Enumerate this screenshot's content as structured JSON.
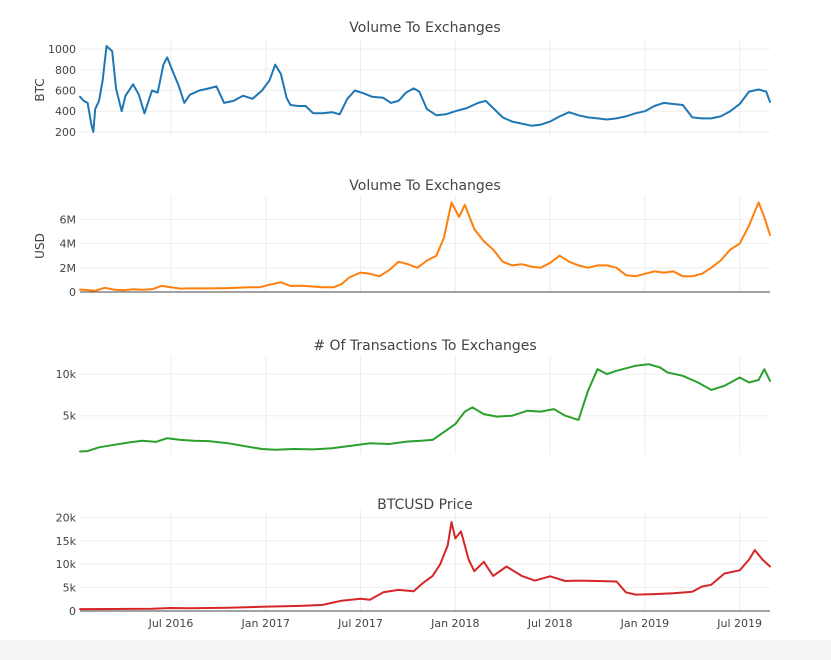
{
  "chart_data": [
    {
      "type": "line",
      "title": "Volume To Exchanges",
      "ylabel": "BTC",
      "color": "#1f77b4",
      "ylim": [
        170,
        1040
      ],
      "yticks": [
        200,
        400,
        600,
        800,
        1000
      ],
      "ytick_labels": [
        "200",
        "400",
        "600",
        "800",
        "1000"
      ],
      "show_zero_line": false,
      "points": [
        [
          2016.02,
          540
        ],
        [
          2016.04,
          500
        ],
        [
          2016.06,
          480
        ],
        [
          2016.08,
          270
        ],
        [
          2016.09,
          200
        ],
        [
          2016.1,
          420
        ],
        [
          2016.12,
          500
        ],
        [
          2016.14,
          700
        ],
        [
          2016.16,
          1030
        ],
        [
          2016.19,
          980
        ],
        [
          2016.21,
          620
        ],
        [
          2016.24,
          400
        ],
        [
          2016.26,
          550
        ],
        [
          2016.3,
          660
        ],
        [
          2016.33,
          560
        ],
        [
          2016.36,
          380
        ],
        [
          2016.4,
          600
        ],
        [
          2016.43,
          580
        ],
        [
          2016.46,
          850
        ],
        [
          2016.48,
          920
        ],
        [
          2016.51,
          780
        ],
        [
          2016.54,
          650
        ],
        [
          2016.57,
          480
        ],
        [
          2016.6,
          560
        ],
        [
          2016.65,
          600
        ],
        [
          2016.7,
          620
        ],
        [
          2016.74,
          640
        ],
        [
          2016.78,
          480
        ],
        [
          2016.83,
          500
        ],
        [
          2016.88,
          550
        ],
        [
          2016.93,
          520
        ],
        [
          2016.98,
          600
        ],
        [
          2017.02,
          700
        ],
        [
          2017.05,
          850
        ],
        [
          2017.08,
          760
        ],
        [
          2017.11,
          530
        ],
        [
          2017.13,
          460
        ],
        [
          2017.17,
          450
        ],
        [
          2017.21,
          450
        ],
        [
          2017.25,
          380
        ],
        [
          2017.3,
          380
        ],
        [
          2017.35,
          390
        ],
        [
          2017.39,
          370
        ],
        [
          2017.43,
          520
        ],
        [
          2017.47,
          600
        ],
        [
          2017.52,
          570
        ],
        [
          2017.56,
          540
        ],
        [
          2017.62,
          530
        ],
        [
          2017.66,
          480
        ],
        [
          2017.7,
          500
        ],
        [
          2017.74,
          580
        ],
        [
          2017.78,
          620
        ],
        [
          2017.81,
          590
        ],
        [
          2017.85,
          420
        ],
        [
          2017.9,
          360
        ],
        [
          2017.95,
          370
        ],
        [
          2018.0,
          400
        ],
        [
          2018.06,
          430
        ],
        [
          2018.12,
          480
        ],
        [
          2018.16,
          500
        ],
        [
          2018.2,
          430
        ],
        [
          2018.25,
          340
        ],
        [
          2018.3,
          300
        ],
        [
          2018.35,
          280
        ],
        [
          2018.4,
          260
        ],
        [
          2018.45,
          270
        ],
        [
          2018.5,
          300
        ],
        [
          2018.55,
          350
        ],
        [
          2018.6,
          390
        ],
        [
          2018.65,
          360
        ],
        [
          2018.7,
          340
        ],
        [
          2018.75,
          330
        ],
        [
          2018.8,
          320
        ],
        [
          2018.85,
          330
        ],
        [
          2018.9,
          350
        ],
        [
          2018.95,
          380
        ],
        [
          2019.0,
          400
        ],
        [
          2019.05,
          450
        ],
        [
          2019.1,
          480
        ],
        [
          2019.15,
          470
        ],
        [
          2019.2,
          460
        ],
        [
          2019.25,
          340
        ],
        [
          2019.3,
          330
        ],
        [
          2019.35,
          330
        ],
        [
          2019.4,
          350
        ],
        [
          2019.45,
          400
        ],
        [
          2019.5,
          470
        ],
        [
          2019.55,
          590
        ],
        [
          2019.6,
          610
        ],
        [
          2019.64,
          590
        ],
        [
          2019.66,
          490
        ]
      ]
    },
    {
      "type": "line",
      "title": "Volume To Exchanges",
      "ylabel": "USD",
      "color": "#ff7f0e",
      "ylim": [
        0,
        7600000
      ],
      "yticks": [
        0,
        2000000,
        4000000,
        6000000
      ],
      "ytick_labels": [
        "0",
        "2M",
        "4M",
        "6M"
      ],
      "show_zero_line": true,
      "points": [
        [
          2016.02,
          200000
        ],
        [
          2016.05,
          170000
        ],
        [
          2016.1,
          100000
        ],
        [
          2016.15,
          350000
        ],
        [
          2016.2,
          200000
        ],
        [
          2016.25,
          150000
        ],
        [
          2016.3,
          220000
        ],
        [
          2016.35,
          180000
        ],
        [
          2016.4,
          220000
        ],
        [
          2016.45,
          500000
        ],
        [
          2016.5,
          400000
        ],
        [
          2016.55,
          280000
        ],
        [
          2016.6,
          300000
        ],
        [
          2016.7,
          300000
        ],
        [
          2016.8,
          320000
        ],
        [
          2016.9,
          380000
        ],
        [
          2016.97,
          400000
        ],
        [
          2017.02,
          600000
        ],
        [
          2017.08,
          800000
        ],
        [
          2017.13,
          500000
        ],
        [
          2017.2,
          500000
        ],
        [
          2017.3,
          400000
        ],
        [
          2017.36,
          400000
        ],
        [
          2017.4,
          650000
        ],
        [
          2017.44,
          1200000
        ],
        [
          2017.5,
          1600000
        ],
        [
          2017.55,
          1500000
        ],
        [
          2017.6,
          1300000
        ],
        [
          2017.65,
          1800000
        ],
        [
          2017.7,
          2500000
        ],
        [
          2017.75,
          2300000
        ],
        [
          2017.8,
          2000000
        ],
        [
          2017.85,
          2600000
        ],
        [
          2017.9,
          3000000
        ],
        [
          2017.94,
          4500000
        ],
        [
          2017.98,
          7400000
        ],
        [
          2018.02,
          6200000
        ],
        [
          2018.05,
          7200000
        ],
        [
          2018.1,
          5200000
        ],
        [
          2018.15,
          4200000
        ],
        [
          2018.2,
          3500000
        ],
        [
          2018.25,
          2500000
        ],
        [
          2018.3,
          2200000
        ],
        [
          2018.35,
          2300000
        ],
        [
          2018.4,
          2100000
        ],
        [
          2018.45,
          2000000
        ],
        [
          2018.5,
          2400000
        ],
        [
          2018.55,
          3000000
        ],
        [
          2018.6,
          2500000
        ],
        [
          2018.65,
          2200000
        ],
        [
          2018.7,
          2000000
        ],
        [
          2018.75,
          2200000
        ],
        [
          2018.8,
          2200000
        ],
        [
          2018.85,
          2000000
        ],
        [
          2018.9,
          1400000
        ],
        [
          2018.95,
          1300000
        ],
        [
          2019.0,
          1500000
        ],
        [
          2019.05,
          1700000
        ],
        [
          2019.1,
          1600000
        ],
        [
          2019.15,
          1700000
        ],
        [
          2019.2,
          1300000
        ],
        [
          2019.25,
          1300000
        ],
        [
          2019.3,
          1500000
        ],
        [
          2019.35,
          2000000
        ],
        [
          2019.4,
          2600000
        ],
        [
          2019.45,
          3500000
        ],
        [
          2019.5,
          4000000
        ],
        [
          2019.55,
          5500000
        ],
        [
          2019.6,
          7400000
        ],
        [
          2019.63,
          6200000
        ],
        [
          2019.66,
          4700000
        ]
      ]
    },
    {
      "type": "line",
      "title": "# Of Transactions To Exchanges",
      "ylabel": "",
      "color": "#2ca02c",
      "ylim": [
        400,
        11700
      ],
      "yticks": [
        5000,
        10000
      ],
      "ytick_labels": [
        "5k",
        "10k"
      ],
      "show_zero_line": false,
      "points": [
        [
          2016.02,
          700
        ],
        [
          2016.06,
          750
        ],
        [
          2016.12,
          1200
        ],
        [
          2016.2,
          1500
        ],
        [
          2016.28,
          1800
        ],
        [
          2016.35,
          2000
        ],
        [
          2016.42,
          1850
        ],
        [
          2016.48,
          2300
        ],
        [
          2016.55,
          2100
        ],
        [
          2016.62,
          2000
        ],
        [
          2016.7,
          1950
        ],
        [
          2016.8,
          1700
        ],
        [
          2016.9,
          1300
        ],
        [
          2016.98,
          1000
        ],
        [
          2017.05,
          900
        ],
        [
          2017.15,
          1000
        ],
        [
          2017.25,
          950
        ],
        [
          2017.35,
          1100
        ],
        [
          2017.45,
          1400
        ],
        [
          2017.55,
          1700
        ],
        [
          2017.65,
          1600
        ],
        [
          2017.75,
          1900
        ],
        [
          2017.82,
          2000
        ],
        [
          2017.88,
          2100
        ],
        [
          2017.95,
          3200
        ],
        [
          2018.0,
          4000
        ],
        [
          2018.05,
          5500
        ],
        [
          2018.09,
          6000
        ],
        [
          2018.15,
          5200
        ],
        [
          2018.22,
          4900
        ],
        [
          2018.3,
          5000
        ],
        [
          2018.38,
          5600
        ],
        [
          2018.45,
          5500
        ],
        [
          2018.52,
          5800
        ],
        [
          2018.58,
          5000
        ],
        [
          2018.65,
          4500
        ],
        [
          2018.7,
          8000
        ],
        [
          2018.75,
          10600
        ],
        [
          2018.8,
          10000
        ],
        [
          2018.85,
          10400
        ],
        [
          2018.95,
          11000
        ],
        [
          2019.02,
          11200
        ],
        [
          2019.08,
          10800
        ],
        [
          2019.12,
          10200
        ],
        [
          2019.2,
          9800
        ],
        [
          2019.28,
          9000
        ],
        [
          2019.35,
          8100
        ],
        [
          2019.42,
          8600
        ],
        [
          2019.5,
          9600
        ],
        [
          2019.55,
          9000
        ],
        [
          2019.6,
          9300
        ],
        [
          2019.63,
          10600
        ],
        [
          2019.66,
          9200
        ]
      ]
    },
    {
      "type": "line",
      "title": "BTCUSD Price",
      "ylabel": "",
      "color": "#d62728",
      "ylim": [
        0,
        20500
      ],
      "yticks": [
        0,
        5000,
        10000,
        15000,
        20000
      ],
      "ytick_labels": [
        "0",
        "5k",
        "10k",
        "15k",
        "20k"
      ],
      "show_zero_line": true,
      "points": [
        [
          2016.02,
          400
        ],
        [
          2016.2,
          420
        ],
        [
          2016.4,
          500
        ],
        [
          2016.5,
          650
        ],
        [
          2016.6,
          600
        ],
        [
          2016.8,
          700
        ],
        [
          2016.98,
          900
        ],
        [
          2017.1,
          1000
        ],
        [
          2017.2,
          1100
        ],
        [
          2017.3,
          1300
        ],
        [
          2017.4,
          2200
        ],
        [
          2017.5,
          2600
        ],
        [
          2017.55,
          2400
        ],
        [
          2017.62,
          4000
        ],
        [
          2017.7,
          4500
        ],
        [
          2017.78,
          4200
        ],
        [
          2017.83,
          6000
        ],
        [
          2017.88,
          7500
        ],
        [
          2017.92,
          10000
        ],
        [
          2017.96,
          14000
        ],
        [
          2017.98,
          19000
        ],
        [
          2018.0,
          15500
        ],
        [
          2018.03,
          17000
        ],
        [
          2018.07,
          11000
        ],
        [
          2018.1,
          8500
        ],
        [
          2018.15,
          10500
        ],
        [
          2018.2,
          7500
        ],
        [
          2018.27,
          9500
        ],
        [
          2018.35,
          7500
        ],
        [
          2018.42,
          6500
        ],
        [
          2018.5,
          7400
        ],
        [
          2018.58,
          6400
        ],
        [
          2018.65,
          6500
        ],
        [
          2018.75,
          6400
        ],
        [
          2018.85,
          6300
        ],
        [
          2018.9,
          4000
        ],
        [
          2018.95,
          3500
        ],
        [
          2019.05,
          3600
        ],
        [
          2019.15,
          3800
        ],
        [
          2019.25,
          4100
        ],
        [
          2019.3,
          5200
        ],
        [
          2019.35,
          5600
        ],
        [
          2019.42,
          8000
        ],
        [
          2019.5,
          8700
        ],
        [
          2019.55,
          11000
        ],
        [
          2019.58,
          13000
        ],
        [
          2019.62,
          11000
        ],
        [
          2019.66,
          9500
        ]
      ]
    }
  ],
  "x_axis": {
    "tick_values": [
      2016.5,
      2017.0,
      2017.5,
      2018.0,
      2018.5,
      2019.0,
      2019.5
    ],
    "tick_labels": [
      "Jul 2016",
      "Jan 2017",
      "Jul 2017",
      "Jan 2018",
      "Jul 2018",
      "Jan 2019",
      "Jul 2019"
    ]
  }
}
